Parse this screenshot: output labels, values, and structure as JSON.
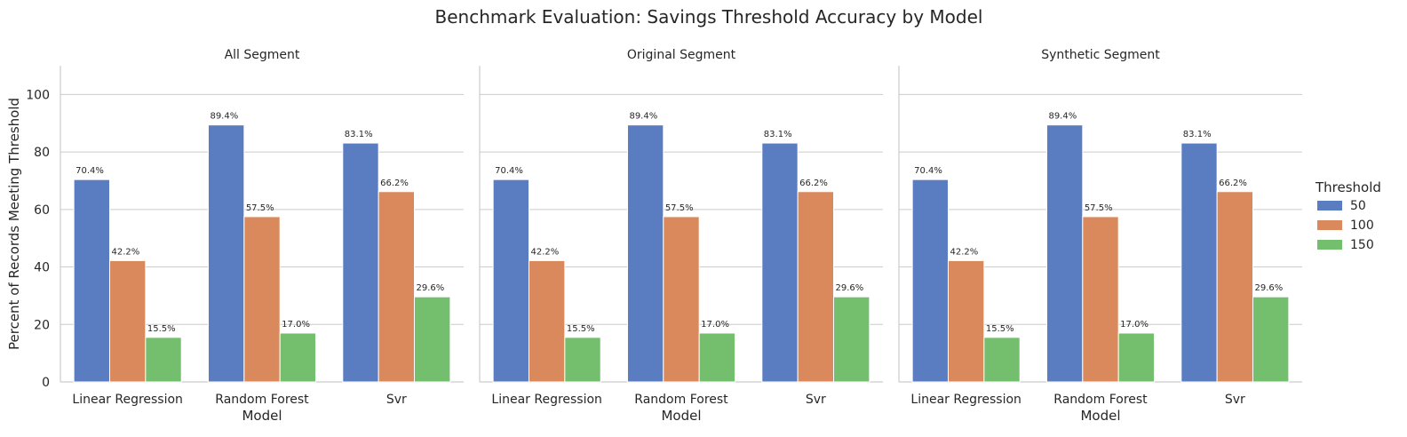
{
  "chart_data": {
    "type": "bar",
    "title": "Benchmark Evaluation: Savings Threshold Accuracy by Model",
    "xlabel": "Model",
    "ylabel": "Percent of Records Meeting Threshold",
    "ylim": [
      0,
      110
    ],
    "yticks": [
      0,
      20,
      40,
      60,
      80,
      100
    ],
    "ytick_labels": [
      "0",
      "20",
      "40",
      "60",
      "80",
      "100"
    ],
    "grid": true,
    "legend": {
      "title": "Threshold",
      "placement": "right",
      "entries": [
        {
          "label": "50",
          "color": "#5a7dc1"
        },
        {
          "label": "100",
          "color": "#d9895c"
        },
        {
          "label": "150",
          "color": "#74bf6e"
        }
      ]
    },
    "categories": [
      "Linear Regression",
      "Random Forest",
      "Svr"
    ],
    "panels": [
      {
        "title": "All Segment",
        "series": [
          {
            "name": "50",
            "values": [
              70.4,
              89.4,
              83.1
            ],
            "labels": [
              "70.4%",
              "89.4%",
              "83.1%"
            ]
          },
          {
            "name": "100",
            "values": [
              42.2,
              57.5,
              66.2
            ],
            "labels": [
              "42.2%",
              "57.5%",
              "66.2%"
            ]
          },
          {
            "name": "150",
            "values": [
              15.5,
              17.0,
              29.6
            ],
            "labels": [
              "15.5%",
              "17.0%",
              "29.6%"
            ]
          }
        ]
      },
      {
        "title": "Original Segment",
        "series": [
          {
            "name": "50",
            "values": [
              70.4,
              89.4,
              83.1
            ],
            "labels": [
              "70.4%",
              "89.4%",
              "83.1%"
            ]
          },
          {
            "name": "100",
            "values": [
              42.2,
              57.5,
              66.2
            ],
            "labels": [
              "42.2%",
              "57.5%",
              "66.2%"
            ]
          },
          {
            "name": "150",
            "values": [
              15.5,
              17.0,
              29.6
            ],
            "labels": [
              "15.5%",
              "17.0%",
              "29.6%"
            ]
          }
        ]
      },
      {
        "title": "Synthetic Segment",
        "series": [
          {
            "name": "50",
            "values": [
              70.4,
              89.4,
              83.1
            ],
            "labels": [
              "70.4%",
              "89.4%",
              "83.1%"
            ]
          },
          {
            "name": "100",
            "values": [
              42.2,
              57.5,
              66.2
            ],
            "labels": [
              "42.2%",
              "57.5%",
              "66.2%"
            ]
          },
          {
            "name": "150",
            "values": [
              15.5,
              17.0,
              29.6
            ],
            "labels": [
              "15.5%",
              "17.0%",
              "29.6%"
            ]
          }
        ]
      }
    ]
  }
}
